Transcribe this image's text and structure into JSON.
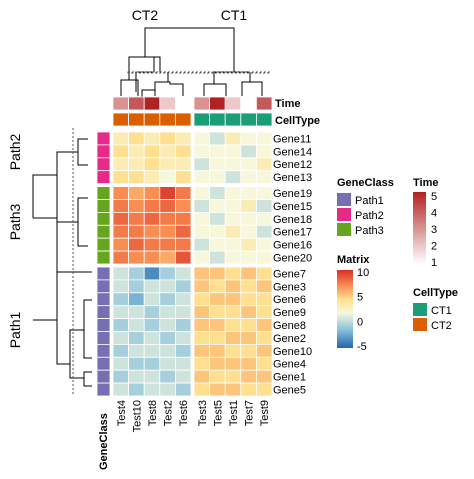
{
  "chart_data": {
    "type": "heatmap",
    "columns": [
      "Test4",
      "Test10",
      "Test8",
      "Test2",
      "Test6",
      "Test3",
      "Test5",
      "Test1",
      "Test7",
      "Test9"
    ],
    "column_clusters": [
      {
        "label": "CT2",
        "columns": [
          "Test4",
          "Test10",
          "Test8",
          "Test2",
          "Test6"
        ]
      },
      {
        "label": "CT1",
        "columns": [
          "Test3",
          "Test5",
          "Test1",
          "Test7",
          "Test9"
        ]
      }
    ],
    "row_clusters": [
      {
        "label": "Path2",
        "rows": [
          "Gene11",
          "Gene14",
          "Gene12",
          "Gene13"
        ]
      },
      {
        "label": "Path3",
        "rows": [
          "Gene19",
          "Gene15",
          "Gene18",
          "Gene17",
          "Gene16",
          "Gene20"
        ]
      },
      {
        "label": "Path1",
        "rows": [
          "Gene7",
          "Gene3",
          "Gene6",
          "Gene9",
          "Gene8",
          "Gene2",
          "Gene10",
          "Gene4",
          "Gene1",
          "Gene5"
        ]
      }
    ],
    "rows": [
      "Gene11",
      "Gene14",
      "Gene12",
      "Gene13",
      "Gene19",
      "Gene15",
      "Gene18",
      "Gene17",
      "Gene16",
      "Gene20",
      "Gene7",
      "Gene3",
      "Gene6",
      "Gene9",
      "Gene8",
      "Gene2",
      "Gene10",
      "Gene4",
      "Gene1",
      "Gene5"
    ],
    "matrix": [
      [
        1,
        2,
        1,
        2,
        1,
        0,
        -1,
        1,
        0,
        0
      ],
      [
        2,
        1,
        2,
        1,
        2,
        0,
        0,
        0,
        -1,
        0
      ],
      [
        1,
        1,
        2,
        1,
        1,
        -1,
        0,
        0,
        0,
        1
      ],
      [
        2,
        2,
        1,
        0,
        2,
        0,
        0,
        -1,
        0,
        0
      ],
      [
        5,
        4,
        5,
        9,
        6,
        0,
        -1,
        0,
        0,
        0
      ],
      [
        6,
        5,
        6,
        7,
        5,
        -1,
        0,
        0,
        1,
        -1
      ],
      [
        7,
        6,
        7,
        6,
        6,
        0,
        -1,
        0,
        0,
        0
      ],
      [
        6,
        6,
        5,
        5,
        7,
        0,
        0,
        1,
        0,
        -1
      ],
      [
        5,
        7,
        6,
        6,
        6,
        -1,
        0,
        0,
        1,
        0
      ],
      [
        6,
        5,
        5,
        4,
        8,
        0,
        -1,
        0,
        0,
        0
      ],
      [
        -1,
        -2,
        -4,
        -2,
        -1,
        3,
        3,
        2,
        3,
        2
      ],
      [
        -1,
        -2,
        -1,
        -1,
        -2,
        3,
        2,
        3,
        2,
        3
      ],
      [
        -2,
        -3,
        -1,
        -2,
        -1,
        2,
        3,
        3,
        2,
        2
      ],
      [
        -1,
        -1,
        -2,
        -1,
        -1,
        3,
        2,
        2,
        3,
        2
      ],
      [
        -2,
        -1,
        -2,
        -1,
        -2,
        3,
        3,
        2,
        2,
        3
      ],
      [
        -1,
        -2,
        -1,
        -2,
        -1,
        2,
        2,
        3,
        3,
        2
      ],
      [
        -2,
        -1,
        -1,
        -1,
        -2,
        3,
        3,
        2,
        2,
        3
      ],
      [
        -1,
        -2,
        -2,
        -1,
        -1,
        2,
        3,
        3,
        3,
        2
      ],
      [
        -2,
        -1,
        -1,
        -2,
        -1,
        3,
        2,
        2,
        3,
        3
      ],
      [
        -1,
        -2,
        -1,
        -1,
        -2,
        2,
        3,
        3,
        2,
        2
      ]
    ],
    "annotations": {
      "time": {
        "name": "Time",
        "values": [
          3,
          4,
          5,
          2,
          1,
          3,
          5,
          2,
          1,
          4
        ],
        "scale": {
          "min": 1,
          "max": 5,
          "ticks": [
            "5",
            "4",
            "3",
            "2",
            "1"
          ],
          "colors": [
            "#ffffff",
            "#b22222"
          ]
        }
      },
      "cell_type": {
        "name": "CellType",
        "values": [
          "CT2",
          "CT2",
          "CT2",
          "CT2",
          "CT2",
          "CT1",
          "CT1",
          "CT1",
          "CT1",
          "CT1"
        ],
        "levels": [
          {
            "label": "CT1",
            "color": "#1b9e77"
          },
          {
            "label": "CT2",
            "color": "#d95f02"
          }
        ]
      },
      "gene_class": {
        "name": "GeneClass",
        "levels": [
          {
            "label": "Path1",
            "color": "#7570b3"
          },
          {
            "label": "Path2",
            "color": "#e7298a"
          },
          {
            "label": "Path3",
            "color": "#66a61e"
          }
        ]
      }
    },
    "matrix_legend": {
      "name": "Matrix",
      "ticks": [
        "10",
        "5",
        "0",
        "-5"
      ],
      "range": [
        -5,
        10
      ],
      "colors": [
        "#2166ac",
        "#f7f7dc",
        "#d73027"
      ]
    }
  }
}
